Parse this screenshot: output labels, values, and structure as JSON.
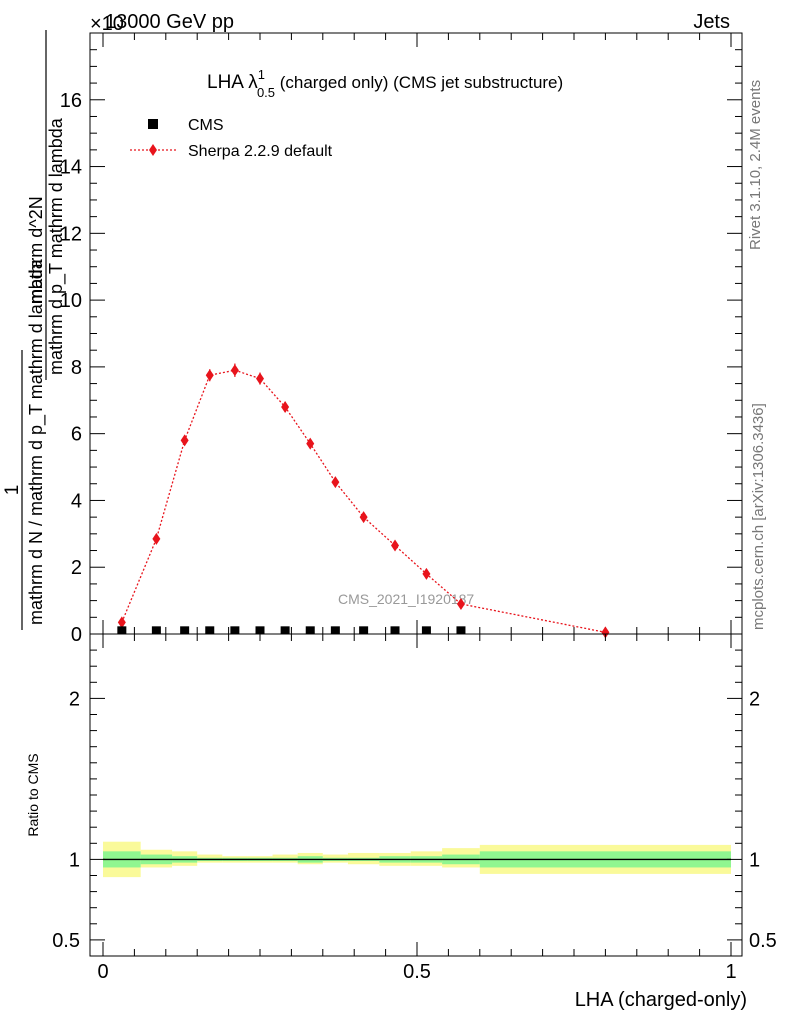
{
  "header": {
    "left": "13000 GeV pp",
    "right": "Jets",
    "multiplier": "×10"
  },
  "side": {
    "top_text": "Rivet 3.1.10,  2.4M events",
    "bottom_text": "mcplots.cern.ch [arXiv:1306.3436]"
  },
  "plot_title": {
    "main": "LHA λ",
    "sup": "1",
    "sub": "0.5",
    "rest": " (charged only) (CMS jet substructure)"
  },
  "watermark": "CMS_2021_I1920187",
  "legend": {
    "cms": "CMS",
    "sherpa": "Sherpa 2.2.9 default"
  },
  "y_axis_label": {
    "numerator": "1",
    "denominator": "mathrm d N / mathrm d p_T mathrm d lambda",
    "numerator2": "mathrm d^2N",
    "denominator2": "mathrm d p_T mathrm d lambda"
  },
  "ratio_label": "Ratio to CMS",
  "x_axis_label": "LHA (charged-only)",
  "colors": {
    "sherpa": "#e8141c",
    "cms": "#000000",
    "band_inner": "#90f690",
    "band_outer": "#fafa9a"
  },
  "chart_data": {
    "type": "line",
    "main": {
      "xlim": [
        0,
        1
      ],
      "ylim": [
        0,
        18
      ],
      "y_ticks": [
        0,
        2,
        4,
        6,
        8,
        10,
        12,
        14,
        16
      ],
      "y_tick_labels": [
        "0",
        "2",
        "4",
        "6",
        "8",
        "10",
        "12",
        "14",
        "16"
      ],
      "series": [
        {
          "name": "CMS",
          "x": [
            0.03,
            0.085,
            0.13,
            0.17,
            0.21,
            0.25,
            0.29,
            0.33,
            0.37,
            0.415,
            0.465,
            0.515,
            0.57
          ],
          "values": [
            0.05,
            0.05,
            0.05,
            0.05,
            0.05,
            0.05,
            0.05,
            0.05,
            0.05,
            0.05,
            0.05,
            0.05,
            0.05
          ]
        },
        {
          "name": "Sherpa 2.2.9 default",
          "x": [
            0.03,
            0.085,
            0.13,
            0.17,
            0.21,
            0.25,
            0.29,
            0.33,
            0.37,
            0.415,
            0.465,
            0.515,
            0.57,
            0.8
          ],
          "values": [
            0.35,
            2.85,
            5.8,
            7.75,
            7.9,
            7.65,
            6.8,
            5.7,
            4.55,
            3.5,
            2.65,
            1.8,
            0.9,
            0.05
          ],
          "errors": [
            0.08,
            0.1,
            0.15,
            0.18,
            0.2,
            0.18,
            0.15,
            0.13,
            0.12,
            0.1,
            0.08,
            0.07,
            0.05,
            0.02
          ]
        }
      ]
    },
    "ratio": {
      "ylim": [
        0.4,
        2.4
      ],
      "y_ticks": [
        0.5,
        1,
        2
      ],
      "y_tick_labels": [
        "0.5",
        "1",
        "2"
      ],
      "x_ticks": [
        0,
        0.5,
        1
      ],
      "x_tick_labels": [
        "0",
        "0.5",
        "1"
      ],
      "bin_edges": [
        0,
        0.06,
        0.11,
        0.15,
        0.19,
        0.23,
        0.27,
        0.31,
        0.35,
        0.39,
        0.44,
        0.49,
        0.54,
        0.6,
        1.0
      ],
      "inner_low": [
        0.95,
        0.97,
        0.98,
        0.99,
        0.99,
        0.99,
        0.99,
        0.98,
        0.99,
        0.99,
        0.98,
        0.98,
        0.97,
        0.95
      ],
      "inner_high": [
        1.05,
        1.03,
        1.02,
        1.01,
        1.01,
        1.01,
        1.01,
        1.02,
        1.01,
        1.01,
        1.02,
        1.02,
        1.03,
        1.05
      ],
      "outer_low": [
        0.89,
        0.95,
        0.96,
        0.98,
        0.98,
        0.98,
        0.98,
        0.97,
        0.98,
        0.97,
        0.96,
        0.96,
        0.95,
        0.91
      ],
      "outer_high": [
        1.11,
        1.06,
        1.05,
        1.03,
        1.02,
        1.02,
        1.03,
        1.04,
        1.03,
        1.04,
        1.04,
        1.05,
        1.07,
        1.09
      ]
    }
  }
}
